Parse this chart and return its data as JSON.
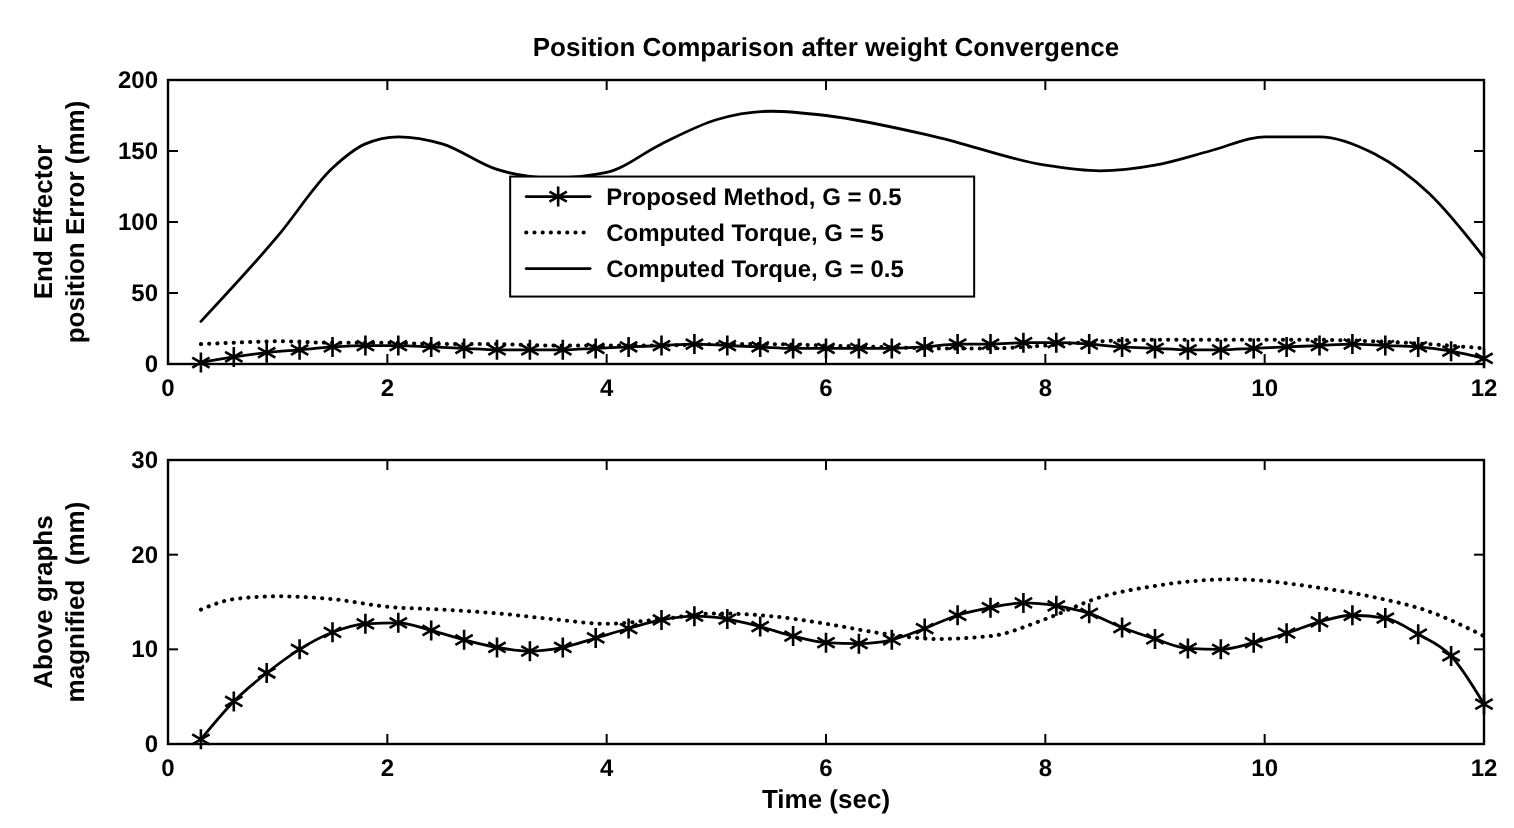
{
  "chart_data": [
    {
      "type": "line",
      "title": "Position Comparison after weight Convergence",
      "ylabel": "End Effector\nposition Error (mm)",
      "xlim": [
        0,
        12
      ],
      "xticks": [
        0,
        2,
        4,
        6,
        8,
        10,
        12
      ],
      "ylim": [
        0,
        200
      ],
      "yticks": [
        0,
        50,
        100,
        150,
        200
      ],
      "grid": false,
      "legend": "center",
      "series": [
        {
          "name": "Proposed Method, G = 0.5",
          "color": "#000000",
          "marker": "cross",
          "line_style": "solid",
          "x": [
            0.3,
            0.6,
            0.9,
            1.2,
            1.5,
            1.8,
            2.1,
            2.4,
            2.7,
            3.0,
            3.3,
            3.6,
            3.9,
            4.2,
            4.5,
            4.8,
            5.1,
            5.4,
            5.7,
            6.0,
            6.3,
            6.6,
            6.9,
            7.2,
            7.5,
            7.8,
            8.1,
            8.4,
            8.7,
            9.0,
            9.3,
            9.6,
            9.9,
            10.2,
            10.5,
            10.8,
            11.1,
            11.4,
            11.7,
            12.0
          ],
          "values": [
            1,
            5,
            8,
            10,
            12,
            13,
            13,
            12,
            11,
            10,
            10,
            10,
            11,
            12,
            13,
            14,
            13,
            12,
            11,
            11,
            11,
            11,
            12,
            14,
            14,
            15,
            15,
            14,
            12,
            11,
            10,
            10,
            11,
            12,
            13,
            14,
            13,
            12,
            9,
            4
          ]
        },
        {
          "name": "Computed Torque, G = 5",
          "color": "#000000",
          "marker": "none",
          "line_style": "dotted",
          "x": [
            0.3,
            0.6,
            1,
            1.5,
            2,
            2.5,
            3,
            3.5,
            4,
            4.5,
            5,
            5.5,
            6,
            6.5,
            7,
            7.5,
            8,
            8.5,
            9,
            9.7,
            10.5,
            11,
            11.5,
            12
          ],
          "values": [
            14,
            15,
            16,
            15,
            15,
            14,
            14,
            13,
            13,
            13,
            14,
            14,
            13,
            12,
            11,
            11,
            13,
            16,
            17,
            17,
            17,
            16,
            14,
            11
          ]
        },
        {
          "name": "Computed Torque, G = 0.5",
          "color": "#000000",
          "marker": "none",
          "line_style": "solid",
          "x": [
            0.3,
            1,
            1.5,
            1.8,
            2.1,
            2.5,
            3,
            3.5,
            4,
            4.5,
            5,
            5.5,
            6,
            7,
            8,
            8.5,
            9,
            9.5,
            10,
            10.5,
            11,
            11.5,
            12
          ],
          "values": [
            30,
            90,
            138,
            155,
            160,
            155,
            137,
            131,
            135,
            155,
            172,
            178,
            175,
            160,
            140,
            136,
            140,
            150,
            160,
            160,
            148,
            120,
            75
          ]
        }
      ]
    },
    {
      "type": "line",
      "ylabel": "Above graphs\nmagnified  (mm)",
      "xlabel": "Time (sec)",
      "xlim": [
        0,
        12
      ],
      "xticks": [
        0,
        2,
        4,
        6,
        8,
        10,
        12
      ],
      "ylim": [
        0,
        30
      ],
      "yticks": [
        0,
        10,
        20,
        30
      ],
      "grid": false,
      "legend": false,
      "series": [
        {
          "color": "#000000",
          "marker": "cross",
          "line_style": "solid",
          "x": [
            0.3,
            0.6,
            0.9,
            1.2,
            1.5,
            1.8,
            2.1,
            2.4,
            2.7,
            3.0,
            3.3,
            3.6,
            3.9,
            4.2,
            4.5,
            4.8,
            5.1,
            5.4,
            5.7,
            6.0,
            6.3,
            6.6,
            6.9,
            7.2,
            7.5,
            7.8,
            8.1,
            8.4,
            8.7,
            9.0,
            9.3,
            9.6,
            9.9,
            10.2,
            10.5,
            10.8,
            11.1,
            11.4,
            11.7,
            12.0
          ],
          "values": [
            0.5,
            4.5,
            7.5,
            10,
            11.8,
            12.7,
            12.8,
            12,
            11,
            10.2,
            9.8,
            10.2,
            11.2,
            12.2,
            13.1,
            13.5,
            13.2,
            12.4,
            11.4,
            10.7,
            10.6,
            11,
            12.2,
            13.6,
            14.4,
            14.9,
            14.6,
            13.8,
            12.3,
            11.1,
            10.1,
            10,
            10.7,
            11.7,
            12.9,
            13.6,
            13.3,
            11.6,
            9.3,
            4.2
          ]
        },
        {
          "color": "#000000",
          "marker": "none",
          "line_style": "dotted",
          "x": [
            0.3,
            0.6,
            1,
            1.5,
            2,
            2.5,
            3,
            3.5,
            4,
            4.5,
            5,
            5.5,
            6,
            6.5,
            7,
            7.5,
            8,
            8.5,
            9,
            9.7,
            10.5,
            11,
            11.5,
            12
          ],
          "values": [
            14.2,
            15.3,
            15.6,
            15.3,
            14.5,
            14.2,
            13.8,
            13.2,
            12.7,
            13.2,
            13.8,
            13.5,
            12.7,
            11.7,
            11.1,
            11.4,
            13.2,
            15.5,
            16.7,
            17.4,
            16.5,
            15.5,
            14,
            11.4
          ]
        }
      ]
    }
  ]
}
